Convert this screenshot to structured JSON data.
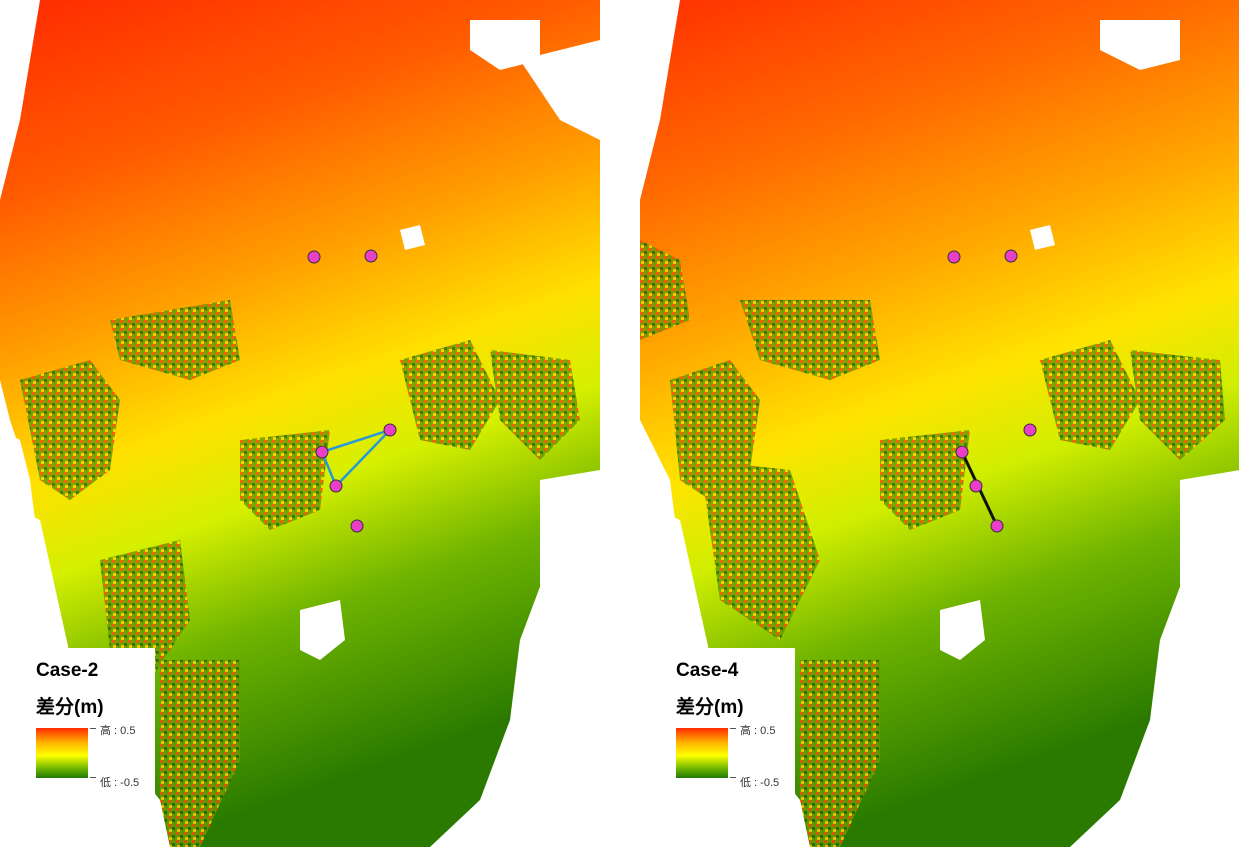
{
  "panels": [
    {
      "case_label": "Case-2",
      "legend_title": "差分(m)",
      "legend_high": "高 : 0.5",
      "legend_low": "低 : -0.5"
    },
    {
      "case_label": "Case-4",
      "legend_title": "差分(m)",
      "legend_high": "高 : 0.5",
      "legend_low": "低 : -0.5"
    }
  ],
  "colors": {
    "high": "#ff2a00",
    "mid": "#ffff00",
    "low": "#1f7a00",
    "marker": "#e83ec8",
    "case2_line": "#2a9ad6",
    "case4_line": "#111111"
  }
}
